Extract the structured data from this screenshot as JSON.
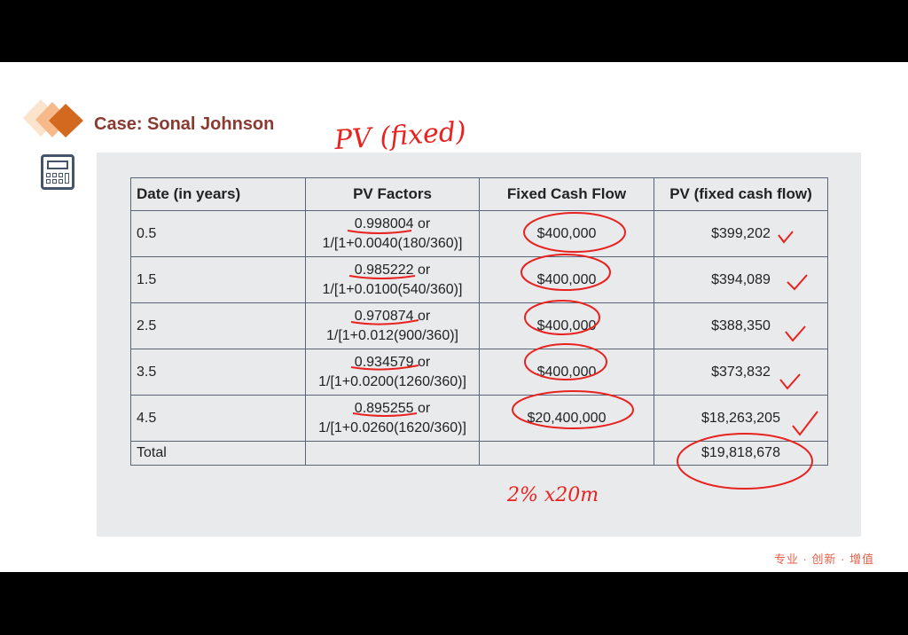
{
  "slide": {
    "title": "Case: Sonal Johnson",
    "slogan": "专业 · 创新 · 增值",
    "logo_icon": "diamond-stack-icon",
    "side_icon": "calculator-icon",
    "accent_color": "#d2691e",
    "title_color": "#8b3a32"
  },
  "table": {
    "headers": [
      "Date (in years)",
      "PV Factors",
      "Fixed Cash Flow",
      "PV (fixed cash flow)"
    ],
    "rows": [
      {
        "date": "0.5",
        "factor": "0.998004 or",
        "formula": "1/[1+0.0040(180/360)]",
        "cash": "$400,000",
        "pv": "$399,202"
      },
      {
        "date": "1.5",
        "factor": "0.985222 or",
        "formula": "1/[1+0.0100(540/360)]",
        "cash": "$400,000",
        "pv": "$394,089"
      },
      {
        "date": "2.5",
        "factor": "0.970874 or",
        "formula": "1/[1+0.012(900/360)]",
        "cash": "$400,000",
        "pv": "$388,350"
      },
      {
        "date": "3.5",
        "factor": "0.934579 or",
        "formula": "1/[1+0.0200(1260/360)]",
        "cash": "$400,000",
        "pv": "$373,832"
      },
      {
        "date": "4.5",
        "factor": "0.895255 or",
        "formula": "1/[1+0.0260(1620/360)]",
        "cash": "$20,400,000",
        "pv": "$18,263,205"
      }
    ],
    "total": {
      "label": "Total",
      "pv": "$19,818,678"
    }
  },
  "annotations": {
    "heading": "PV (fixed)",
    "note": "2% x20m",
    "color": "#e8221f"
  }
}
